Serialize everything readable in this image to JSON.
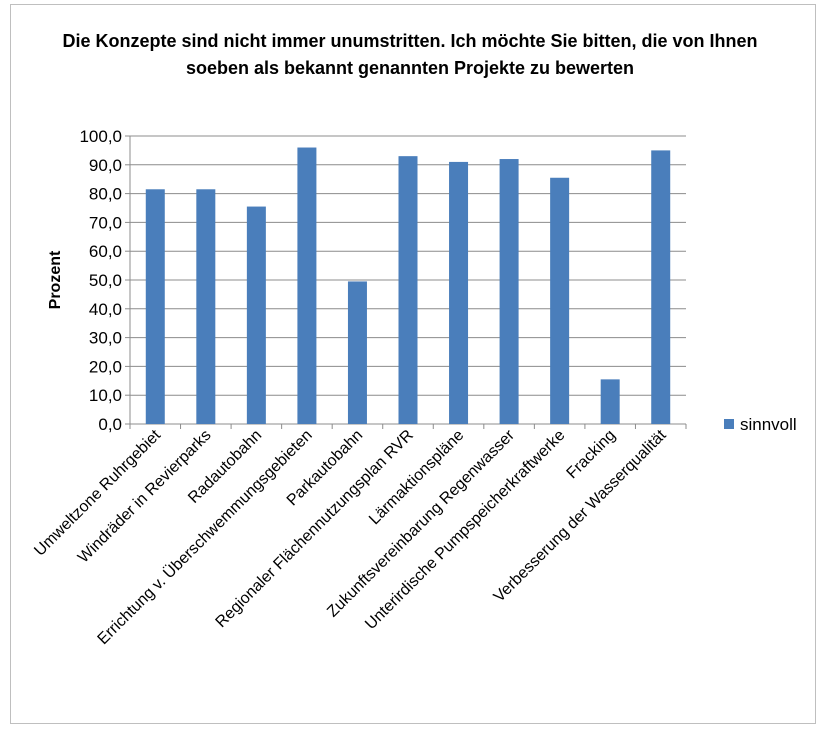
{
  "chart_data": {
    "type": "bar",
    "title": "Die Konzepte sind nicht immer unumstritten. Ich möchte Sie bitten, die von Ihnen soeben als bekannt genannten Projekte zu bewerten",
    "ylabel": "Prozent",
    "xlabel": "",
    "ylim": [
      0,
      100
    ],
    "ytick_labels": [
      "0,0",
      "10,0",
      "20,0",
      "30,0",
      "40,0",
      "50,0",
      "60,0",
      "70,0",
      "80,0",
      "90,0",
      "100,0"
    ],
    "grid": true,
    "legend_position": "right",
    "categories": [
      "Umweltzone Ruhrgebiet",
      "Windräder in Revierparks",
      "Radautobahn",
      "Errichtung v. Überschwemmungsgebieten",
      "Parkautobahn",
      "Regionaler Flächennutzungsplan RVR",
      "Lärmaktionspläne",
      "Zukunftsvereinbarung Regenwasser",
      "Unterirdische Pumpspeicherkraftwerke",
      "Fracking",
      "Verbesserung der Wasserqualität"
    ],
    "series": [
      {
        "name": "sinnvoll",
        "color": "#4a7ebb",
        "values": [
          81.5,
          81.5,
          75.5,
          96.0,
          49.5,
          93.0,
          91.0,
          92.0,
          85.5,
          15.5,
          95.0
        ]
      }
    ]
  }
}
